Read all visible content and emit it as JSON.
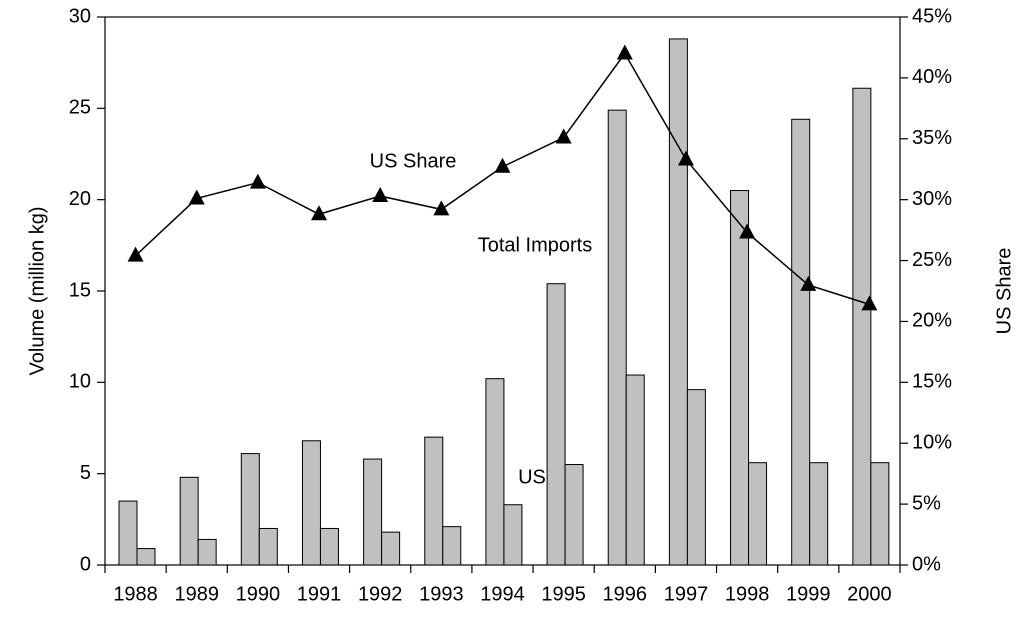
{
  "chart_data": {
    "type": "bar",
    "categories": [
      "1988",
      "1989",
      "1990",
      "1991",
      "1992",
      "1993",
      "1994",
      "1995",
      "1996",
      "1997",
      "1998",
      "1999",
      "2000"
    ],
    "series": [
      {
        "name": "Total Imports",
        "color": "#c0c0c0",
        "values": [
          3.5,
          4.8,
          6.1,
          6.8,
          5.8,
          7.0,
          10.2,
          15.4,
          24.9,
          28.8,
          20.5,
          24.4,
          26.1
        ]
      },
      {
        "name": "US",
        "color": "#c0c0c0",
        "values": [
          0.9,
          1.4,
          2.0,
          2.0,
          1.8,
          2.1,
          3.3,
          5.5,
          10.4,
          9.6,
          5.6,
          5.6,
          5.6
        ]
      },
      {
        "name": "US Share",
        "type": "line",
        "axis": "y2",
        "color": "#000000",
        "values": [
          25.4,
          30.1,
          31.4,
          28.8,
          30.3,
          29.2,
          32.7,
          35.1,
          42.0,
          33.3,
          27.3,
          23.0,
          21.4
        ]
      }
    ],
    "ylabel": "Volume (million kg)",
    "y2label": "US Share",
    "ylim": [
      0,
      30
    ],
    "yticks": [
      0,
      5,
      10,
      15,
      20,
      25,
      30
    ],
    "y2lim": [
      0,
      45
    ],
    "y2ticks": [
      {
        "value": 0,
        "label": "0%"
      },
      {
        "value": 5,
        "label": "5%"
      },
      {
        "value": 10,
        "label": "10%"
      },
      {
        "value": 15,
        "label": "15%"
      },
      {
        "value": 20,
        "label": "20%"
      },
      {
        "value": 25,
        "label": "25%"
      },
      {
        "value": 30,
        "label": "30%"
      },
      {
        "value": 35,
        "label": "35%"
      },
      {
        "value": 40,
        "label": "40%"
      },
      {
        "value": 45,
        "label": "45%"
      }
    ],
    "grid": false
  }
}
